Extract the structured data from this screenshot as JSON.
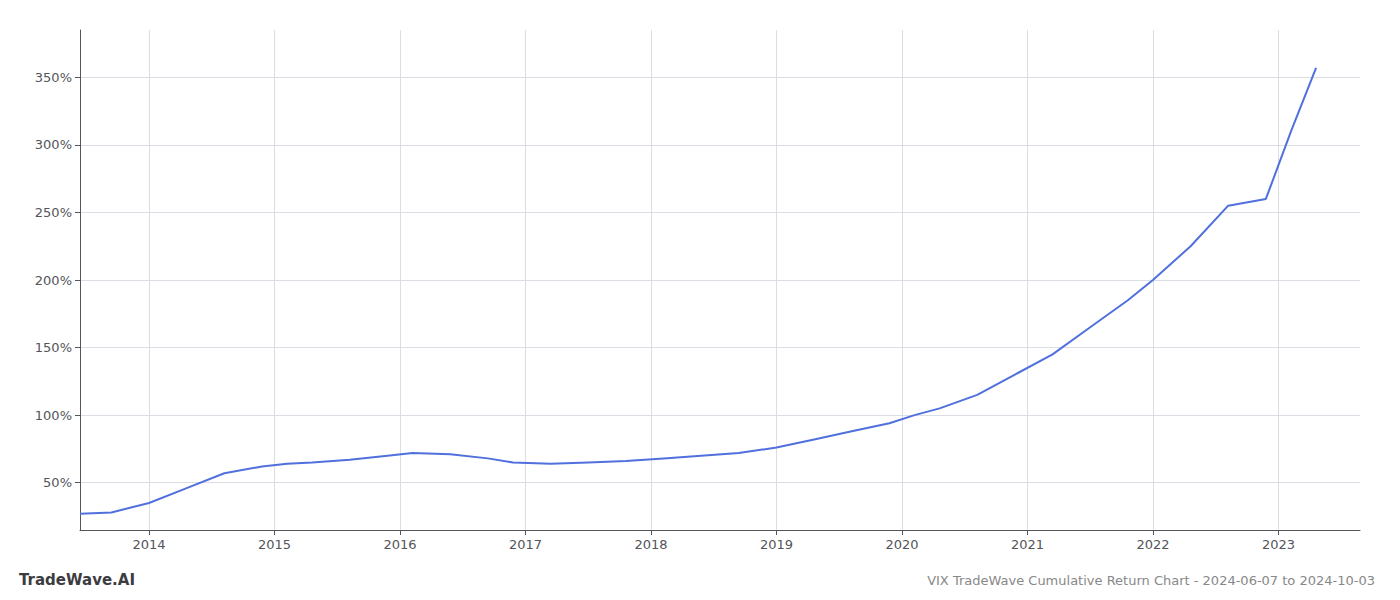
{
  "chart_data": {
    "type": "line",
    "title": "VIX TradeWave Cumulative Return Chart - 2024-06-07 to 2024-10-03",
    "annotations": [
      "TradeWave.AI"
    ],
    "x": [
      2013.45,
      2013.7,
      2014.0,
      2014.3,
      2014.6,
      2014.9,
      2015.1,
      2015.3,
      2015.6,
      2015.9,
      2016.1,
      2016.4,
      2016.7,
      2016.9,
      2017.2,
      2017.5,
      2017.8,
      2018.1,
      2018.4,
      2018.7,
      2019.0,
      2019.3,
      2019.6,
      2019.9,
      2020.1,
      2020.3,
      2020.6,
      2020.9,
      2021.2,
      2021.5,
      2021.8,
      2022.0,
      2022.3,
      2022.6,
      2022.9,
      2023.1,
      2023.3
    ],
    "values": [
      27,
      28,
      35,
      46,
      57,
      62,
      64,
      65,
      67,
      70,
      72,
      71,
      68,
      65,
      64,
      65,
      66,
      68,
      70,
      72,
      76,
      82,
      88,
      94,
      100,
      105,
      115,
      130,
      145,
      165,
      185,
      200,
      225,
      255,
      260,
      310,
      357
    ],
    "xlim": [
      2013.45,
      2023.65
    ],
    "xticks": [
      2014,
      2015,
      2016,
      2017,
      2018,
      2019,
      2020,
      2021,
      2022,
      2023
    ],
    "ylim": [
      15,
      385
    ],
    "yticks": [
      {
        "value": 50,
        "label": "50%"
      },
      {
        "value": 100,
        "label": "100%"
      },
      {
        "value": 150,
        "label": "150%"
      },
      {
        "value": 200,
        "label": "200%"
      },
      {
        "value": 250,
        "label": "250%"
      },
      {
        "value": 300,
        "label": "300%"
      },
      {
        "value": 350,
        "label": "350%"
      }
    ],
    "grid": true
  }
}
